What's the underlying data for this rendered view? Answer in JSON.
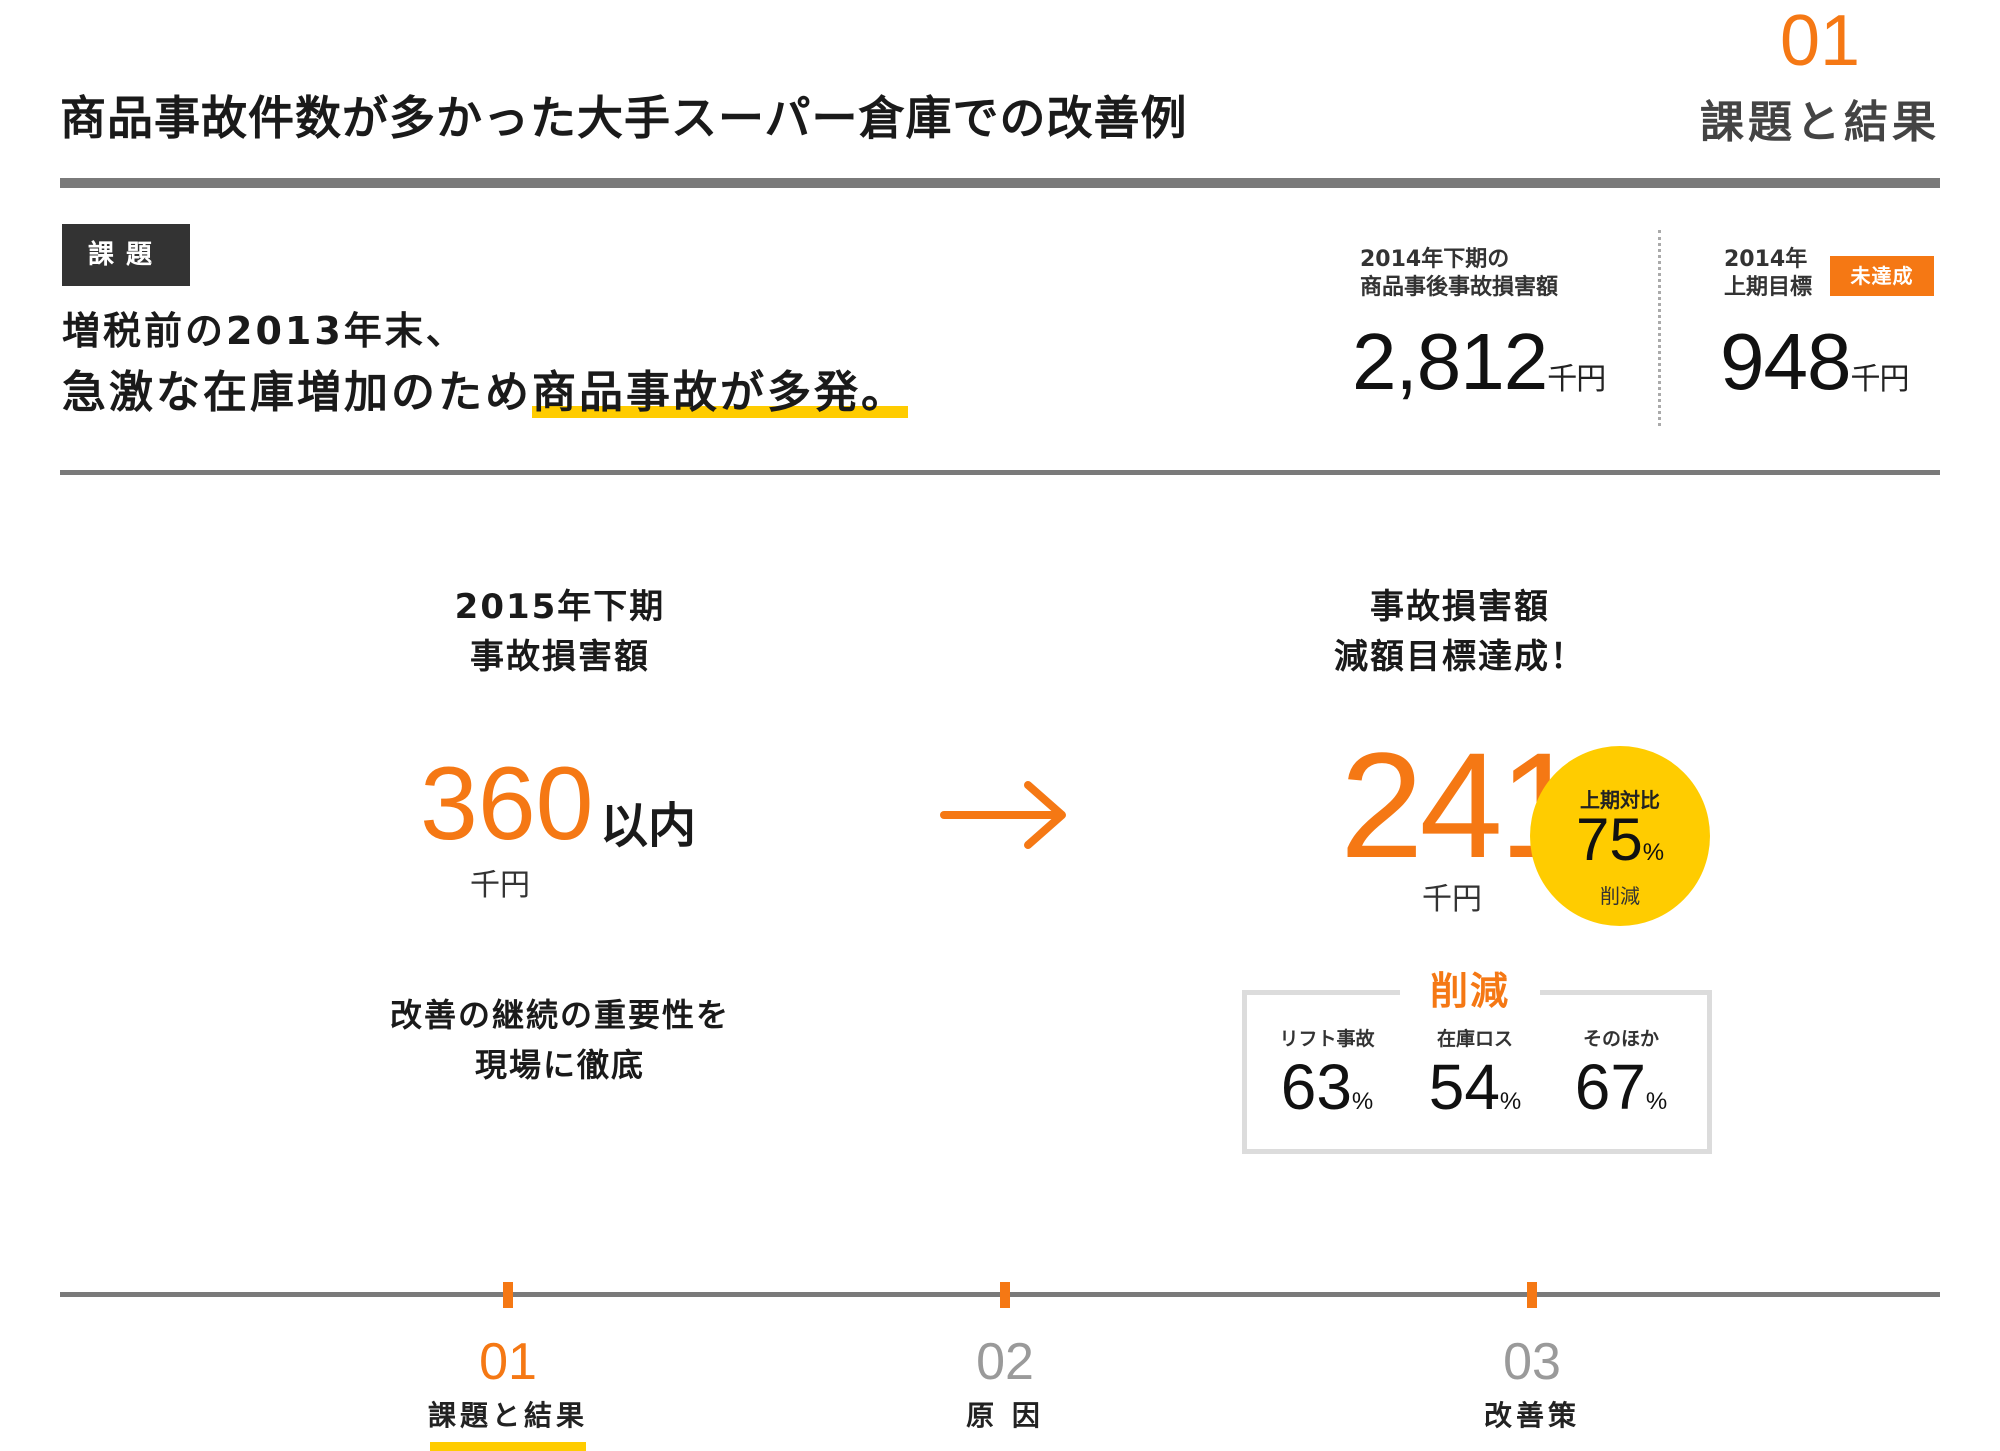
{
  "header": {
    "title": "商品事故件数が多かった大手スーパー倉庫での改善例",
    "section_number": "01",
    "section_title": "課題と結果"
  },
  "issue": {
    "tag": "課題",
    "line1": "増税前の2013年末、",
    "line2_plain": "急激な在庫増加のため",
    "line2_highlight": "商品事故が多発。"
  },
  "metrics": {
    "damage": {
      "label_line1": "2014年下期の",
      "label_line2": "商品事後事故損害額",
      "value": "2,812",
      "unit": "千円"
    },
    "target": {
      "label_line1": "2014年",
      "label_line2": "上期目標",
      "badge": "未達成",
      "value": "948",
      "unit": "千円"
    }
  },
  "left_result": {
    "title_line1": "2015年下期",
    "title_line2": "事故損害額",
    "value": "360",
    "suffix": "以内",
    "unit": "千円",
    "note_line1": "改善の継続の重要性を",
    "note_line2": "現場に徹底"
  },
  "right_result": {
    "title_line1": "事故損害額",
    "title_line2": "減額目標達成！",
    "value": "241",
    "unit": "千円",
    "circle": {
      "label": "上期対比",
      "value": "75",
      "pct": "%",
      "sub": "削減"
    }
  },
  "reduction": {
    "title": "削減",
    "items": [
      {
        "label": "リフト事故",
        "value": "63",
        "pct": "%"
      },
      {
        "label": "在庫ロス",
        "value": "54",
        "pct": "%"
      },
      {
        "label": "そのほか",
        "value": "67",
        "pct": "%"
      }
    ]
  },
  "nav": {
    "items": [
      {
        "num": "01",
        "label": "課題と結果"
      },
      {
        "num": "02",
        "label": "原 因"
      },
      {
        "num": "03",
        "label": "改善策"
      }
    ]
  },
  "colors": {
    "accent_orange": "#f57814",
    "highlight_yellow": "#ffcc00",
    "rule_gray": "#7a7a7a",
    "tag_dark": "#333333"
  },
  "icons": {
    "arrow": "arrow-right-icon"
  }
}
